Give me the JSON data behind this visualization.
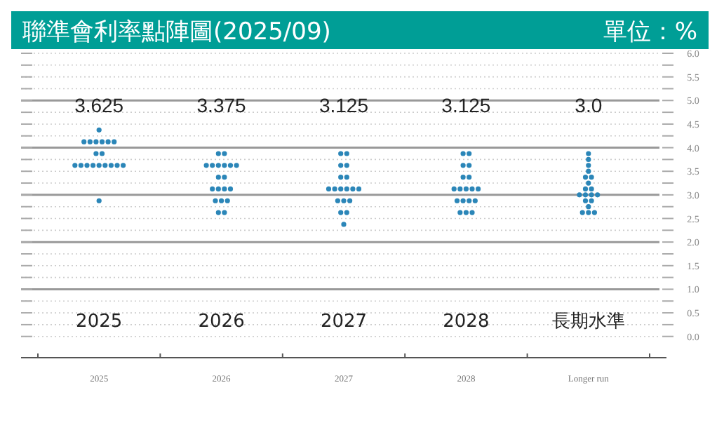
{
  "chart_data": {
    "type": "scatter",
    "title": "聯準會利率點陣圖(2025/09)",
    "ylabel": "單位：%",
    "categories": [
      "2025",
      "2026",
      "2027",
      "2028",
      "長期水準"
    ],
    "series": [
      {
        "color": "#2b86b8",
        "values": [
          4.375,
          3.875,
          3.875,
          3.875,
          3.875
        ]
      },
      {
        "color": "#2b86b8",
        "values": [
          4.125,
          3.875,
          3.875,
          3.875,
          3.75
        ]
      },
      {
        "color": "#2b86b8",
        "values": [
          4.125,
          3.625,
          3.625,
          3.625,
          3.625
        ]
      },
      {
        "color": "#2b86b8",
        "values": [
          4.125,
          3.625,
          3.625,
          3.625,
          3.5
        ]
      },
      {
        "color": "#2b86b8",
        "values": [
          4.125,
          3.625,
          3.375,
          3.375,
          3.375
        ]
      },
      {
        "color": "#2b86b8",
        "values": [
          4.125,
          3.625,
          3.375,
          3.375,
          3.375
        ]
      },
      {
        "color": "#2b86b8",
        "values": [
          4.125,
          3.625,
          3.125,
          3.125,
          3.25
        ]
      },
      {
        "color": "#2b86b8",
        "values": [
          3.875,
          3.625,
          3.125,
          3.125,
          3.125
        ]
      },
      {
        "color": "#2b86b8",
        "values": [
          3.875,
          3.375,
          3.125,
          3.125,
          3.125
        ]
      },
      {
        "color": "#2b86b8",
        "values": [
          3.625,
          3.375,
          3.125,
          3.125,
          3.0
        ]
      },
      {
        "color": "#2b86b8",
        "values": [
          3.625,
          3.125,
          3.125,
          3.125,
          3.0
        ]
      },
      {
        "color": "#2b86b8",
        "values": [
          3.625,
          3.125,
          3.125,
          2.875,
          3.0
        ]
      },
      {
        "color": "#2b86b8",
        "values": [
          3.625,
          3.125,
          2.875,
          2.875,
          3.0
        ]
      },
      {
        "color": "#2b86b8",
        "values": [
          3.625,
          3.125,
          2.875,
          2.875,
          2.875
        ]
      },
      {
        "color": "#2b86b8",
        "values": [
          3.625,
          2.875,
          2.875,
          2.875,
          2.875
        ]
      },
      {
        "color": "#2b86b8",
        "values": [
          3.625,
          2.875,
          2.625,
          2.625,
          2.75
        ]
      },
      {
        "color": "#2b86b8",
        "values": [
          3.625,
          2.875,
          2.625,
          2.625,
          2.625
        ]
      },
      {
        "color": "#2b86b8",
        "values": [
          3.625,
          2.625,
          2.375,
          2.625,
          2.625
        ]
      },
      {
        "color": "#2b86b8",
        "values": [
          2.875,
          2.625,
          null,
          null,
          2.625
        ]
      }
    ],
    "ylim": [
      -0.45,
      6
    ],
    "yticks": [
      {
        "value": 0,
        "label": "0.0"
      },
      {
        "value": 0.25,
        "label": null
      },
      {
        "value": 0.5,
        "label": "0.5"
      },
      {
        "value": 0.75,
        "label": null
      },
      {
        "value": 1,
        "label": "1.0"
      },
      {
        "value": 1.25,
        "label": null
      },
      {
        "value": 1.5,
        "label": "1.5"
      },
      {
        "value": 1.75,
        "label": null
      },
      {
        "value": 2,
        "label": "2.0"
      },
      {
        "value": 2.25,
        "label": null
      },
      {
        "value": 2.5,
        "label": "2.5"
      },
      {
        "value": 2.75,
        "label": null
      },
      {
        "value": 3,
        "label": "3.0"
      },
      {
        "value": 3.25,
        "label": null
      },
      {
        "value": 3.5,
        "label": "3.5"
      },
      {
        "value": 3.75,
        "label": null
      },
      {
        "value": 4,
        "label": "4.0"
      },
      {
        "value": 4.25,
        "label": null
      },
      {
        "value": 4.5,
        "label": "4.5"
      },
      {
        "value": 4.75,
        "label": null
      },
      {
        "value": 5,
        "label": "5.0"
      },
      {
        "value": 5.25,
        "label": null
      },
      {
        "value": 5.5,
        "label": "5.5"
      },
      {
        "value": 5.75,
        "label": null
      },
      {
        "value": 6,
        "label": "6.0"
      }
    ],
    "grid": "y",
    "marker": "circle",
    "annotations": [
      "3.625",
      "3.375",
      "3.125",
      "3.125",
      "3.0",
      "2025",
      "2026",
      "2027",
      "2028",
      "Longer run"
    ]
  }
}
